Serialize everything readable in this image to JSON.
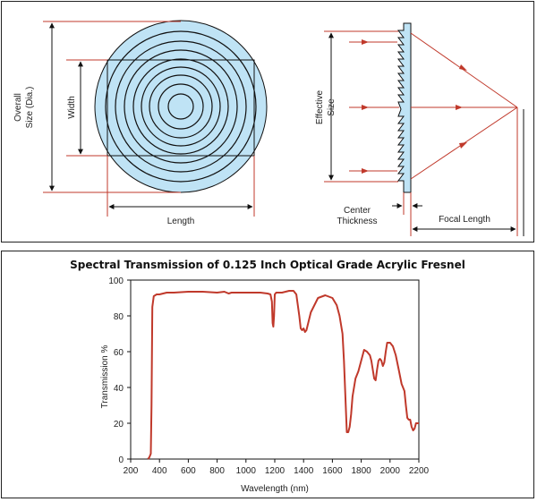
{
  "diagram": {
    "labels": {
      "overall_size_line1": "Overall",
      "overall_size_line2": "Size (Dia.)",
      "width": "Width",
      "length": "Length",
      "effective_size_line1": "Effective",
      "effective_size_line2": "Size",
      "center_thickness_line1": "Center",
      "center_thickness_line2": "Thickness",
      "focal_length": "Focal Length"
    },
    "colors": {
      "lens_fill": "#bfe3f5",
      "dimension_red": "#c0392b",
      "line": "#111111"
    }
  },
  "chart_data": {
    "type": "line",
    "title": "Spectral Transmission of 0.125 Inch Optical Grade Acrylic Fresnel",
    "xlabel": "Wavelength (nm)",
    "ylabel": "Transmission %",
    "xlim": [
      200,
      2200
    ],
    "ylim": [
      0,
      100
    ],
    "xticks": [
      200,
      400,
      600,
      800,
      1000,
      1200,
      1400,
      1600,
      1800,
      2000,
      2200
    ],
    "yticks": [
      0,
      20,
      40,
      60,
      80,
      100
    ],
    "grid": false,
    "series": [
      {
        "color": "#c0392b",
        "x": [
          320,
          330,
          340,
          345,
          350,
          360,
          380,
          400,
          450,
          500,
          600,
          700,
          800,
          850,
          880,
          900,
          1000,
          1100,
          1150,
          1170,
          1180,
          1185,
          1190,
          1195,
          1200,
          1210,
          1220,
          1250,
          1300,
          1330,
          1350,
          1370,
          1380,
          1390,
          1400,
          1410,
          1420,
          1450,
          1500,
          1550,
          1600,
          1630,
          1650,
          1670,
          1680,
          1690,
          1700,
          1710,
          1720,
          1730,
          1740,
          1760,
          1780,
          1800,
          1820,
          1840,
          1860,
          1870,
          1880,
          1890,
          1900,
          1910,
          1920,
          1930,
          1940,
          1950,
          1960,
          1970,
          1980,
          2000,
          2020,
          2040,
          2060,
          2080,
          2100,
          2110,
          2120,
          2130,
          2140,
          2150,
          2160,
          2170,
          2180,
          2200
        ],
        "y": [
          0,
          1,
          3,
          30,
          85,
          91,
          92,
          92,
          93,
          93,
          93.5,
          93.5,
          93,
          93.5,
          92.5,
          93,
          93,
          93,
          92.5,
          92,
          88,
          76,
          74,
          80,
          92,
          93,
          93,
          93,
          94,
          94,
          92,
          80,
          73,
          72,
          73,
          71,
          72,
          82,
          90,
          91.5,
          90,
          86,
          80,
          70,
          55,
          35,
          15,
          15,
          18,
          25,
          35,
          45,
          49,
          55,
          61,
          60,
          58,
          55,
          50,
          45,
          44,
          50,
          55,
          56,
          55,
          52,
          54,
          60,
          65,
          65,
          63,
          58,
          50,
          42,
          38,
          30,
          23,
          22,
          22,
          18,
          16,
          17,
          20,
          20
        ]
      }
    ]
  }
}
